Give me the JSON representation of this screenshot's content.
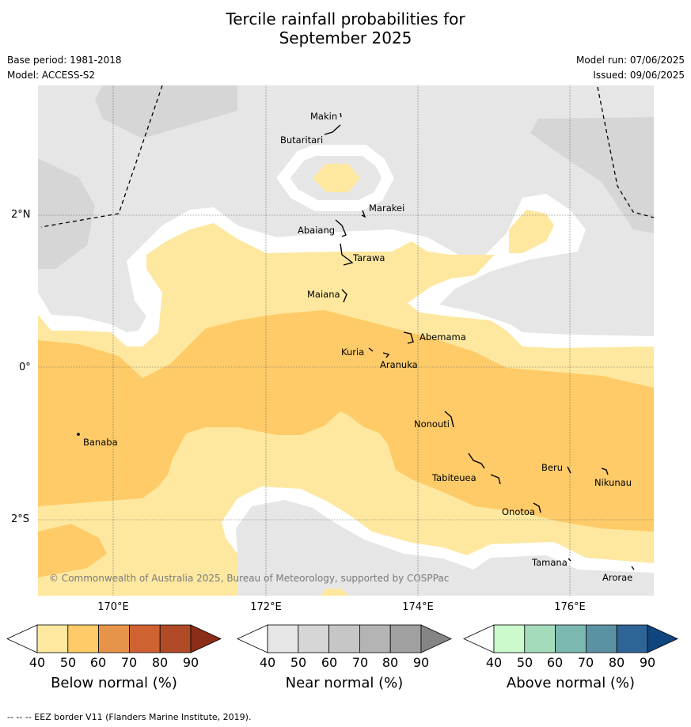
{
  "title_line1": "Tercile rainfall probabilities for",
  "title_line2": "September 2025",
  "base_period": "Base period: 1981-2018",
  "model": "Model: ACCESS-S2",
  "model_run": "Model run: 07/06/2025",
  "issued": "Issued: 09/06/2025",
  "lat_labels": [
    "2°N",
    "0°",
    "2°S"
  ],
  "lon_labels": [
    "170°E",
    "172°E",
    "174°E",
    "176°E"
  ],
  "places": [
    "Makin",
    "Butaritari",
    "Marakei",
    "Abaiang",
    "Tarawa",
    "Maiana",
    "Abemama",
    "Kuria",
    "Aranuka",
    "Nonouti",
    "Banaba",
    "Beru",
    "Tabiteuea",
    "Nikunau",
    "Onotoa",
    "Tamana",
    "Arorae"
  ],
  "copyright": "© Commonwealth of Australia 2025, Bureau of Meteorology, supported by COSPPac",
  "colorbars": [
    {
      "title": "Below normal (%)",
      "ticks": [
        "40",
        "50",
        "60",
        "70",
        "80",
        "90"
      ],
      "colors": [
        "#ffffff",
        "#fee8a0",
        "#fecb68",
        "#e5944a",
        "#cf6232",
        "#b04a27",
        "#8b2d18"
      ]
    },
    {
      "title": "Near normal (%)",
      "ticks": [
        "40",
        "50",
        "60",
        "70",
        "80",
        "90"
      ],
      "colors": [
        "#ffffff",
        "#e6e6e6",
        "#d6d6d6",
        "#c6c6c6",
        "#b4b4b4",
        "#a0a0a0",
        "#858585"
      ]
    },
    {
      "title": "Above normal (%)",
      "ticks": [
        "40",
        "50",
        "60",
        "70",
        "80",
        "90"
      ],
      "colors": [
        "#ffffff",
        "#ccfacc",
        "#a4dbbb",
        "#7ab8b0",
        "#5b92a3",
        "#2f6497",
        "#10457d"
      ]
    }
  ],
  "footer": "-- -- -- EEZ border V11 (Flanders Marine Institute, 2019)."
}
